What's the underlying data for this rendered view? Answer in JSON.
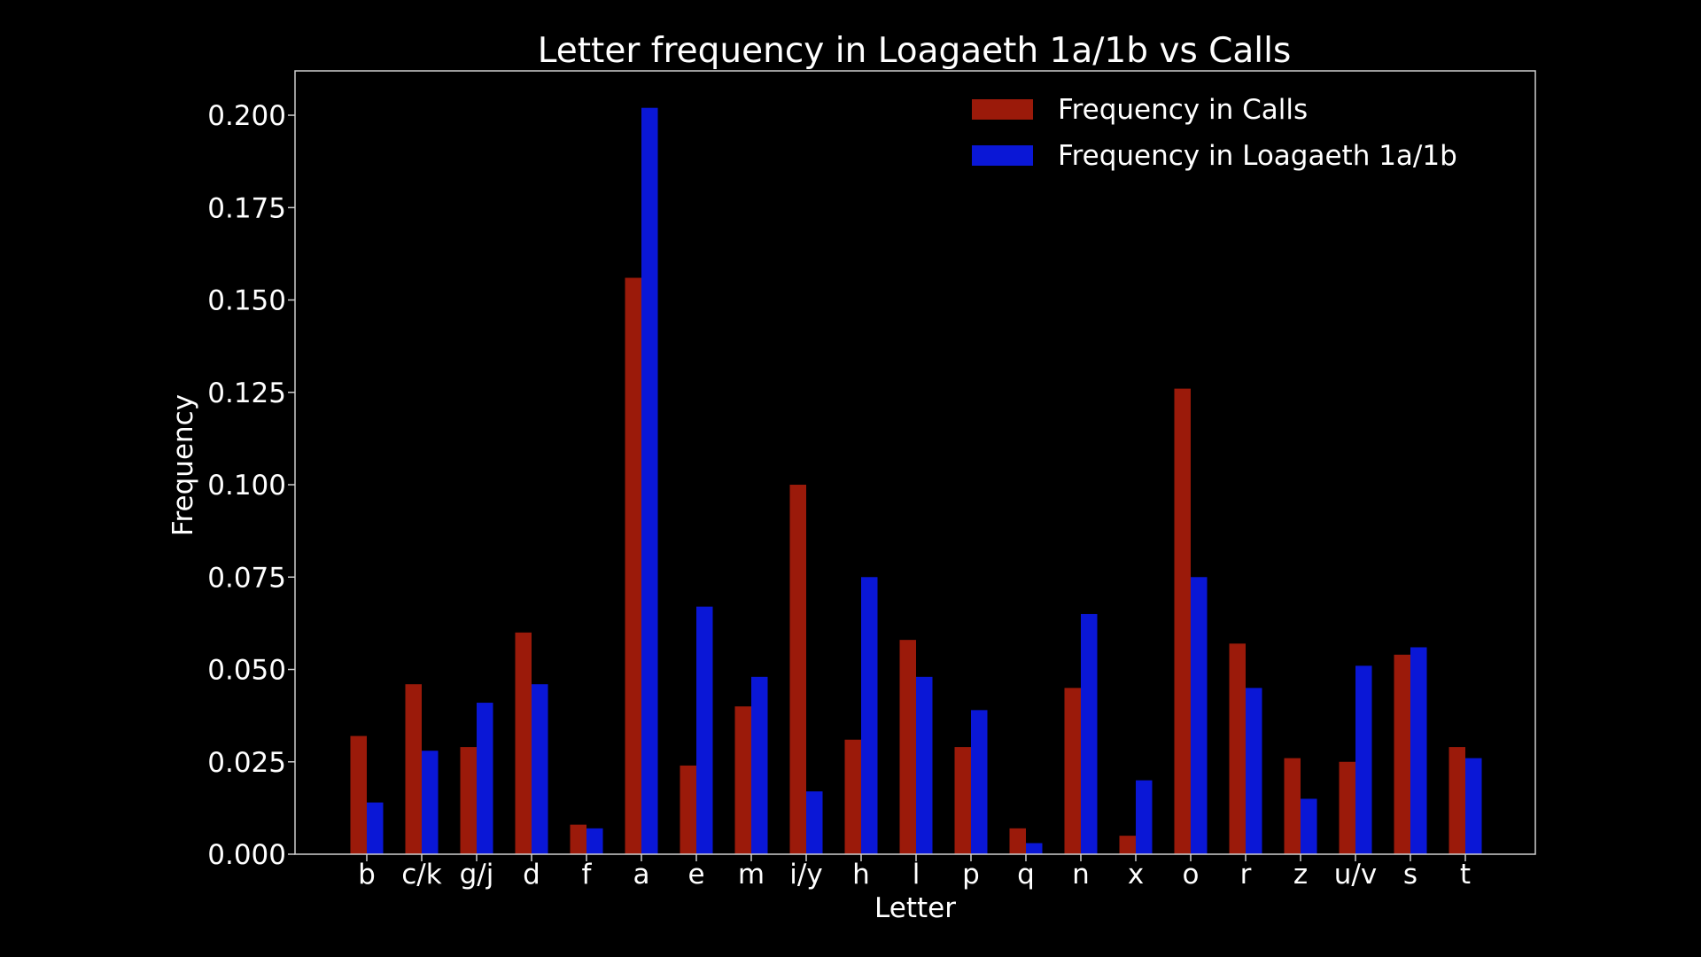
{
  "chart_data": {
    "type": "bar",
    "title": "Letter frequency in Loagaeth 1a/1b vs Calls",
    "xlabel": "Letter",
    "ylabel": "Frequency",
    "ylim": [
      0,
      0.212
    ],
    "yticks": [
      "0.000",
      "0.025",
      "0.050",
      "0.075",
      "0.100",
      "0.125",
      "0.150",
      "0.175",
      "0.200"
    ],
    "ytick_values": [
      0,
      0.025,
      0.05,
      0.075,
      0.1,
      0.125,
      0.15,
      0.175,
      0.2
    ],
    "grid": false,
    "legend_position": "top-right",
    "categories": [
      "b",
      "c/k",
      "g/j",
      "d",
      "f",
      "a",
      "e",
      "m",
      "i/y",
      "h",
      "l",
      "p",
      "q",
      "n",
      "x",
      "o",
      "r",
      "z",
      "u/v",
      "s",
      "t"
    ],
    "series": [
      {
        "name": "Frequency in Calls",
        "color": "#9b1a0a",
        "values": [
          0.032,
          0.046,
          0.029,
          0.06,
          0.008,
          0.156,
          0.024,
          0.04,
          0.1,
          0.031,
          0.058,
          0.029,
          0.007,
          0.045,
          0.005,
          0.126,
          0.057,
          0.026,
          0.025,
          0.054,
          0.029
        ]
      },
      {
        "name": "Frequency in Loagaeth 1a/1b",
        "color": "#0a17d6",
        "values": [
          0.014,
          0.028,
          0.041,
          0.046,
          0.007,
          0.202,
          0.067,
          0.048,
          0.017,
          0.075,
          0.048,
          0.039,
          0.003,
          0.065,
          0.02,
          0.075,
          0.045,
          0.015,
          0.051,
          0.056,
          0.026
        ]
      }
    ]
  }
}
